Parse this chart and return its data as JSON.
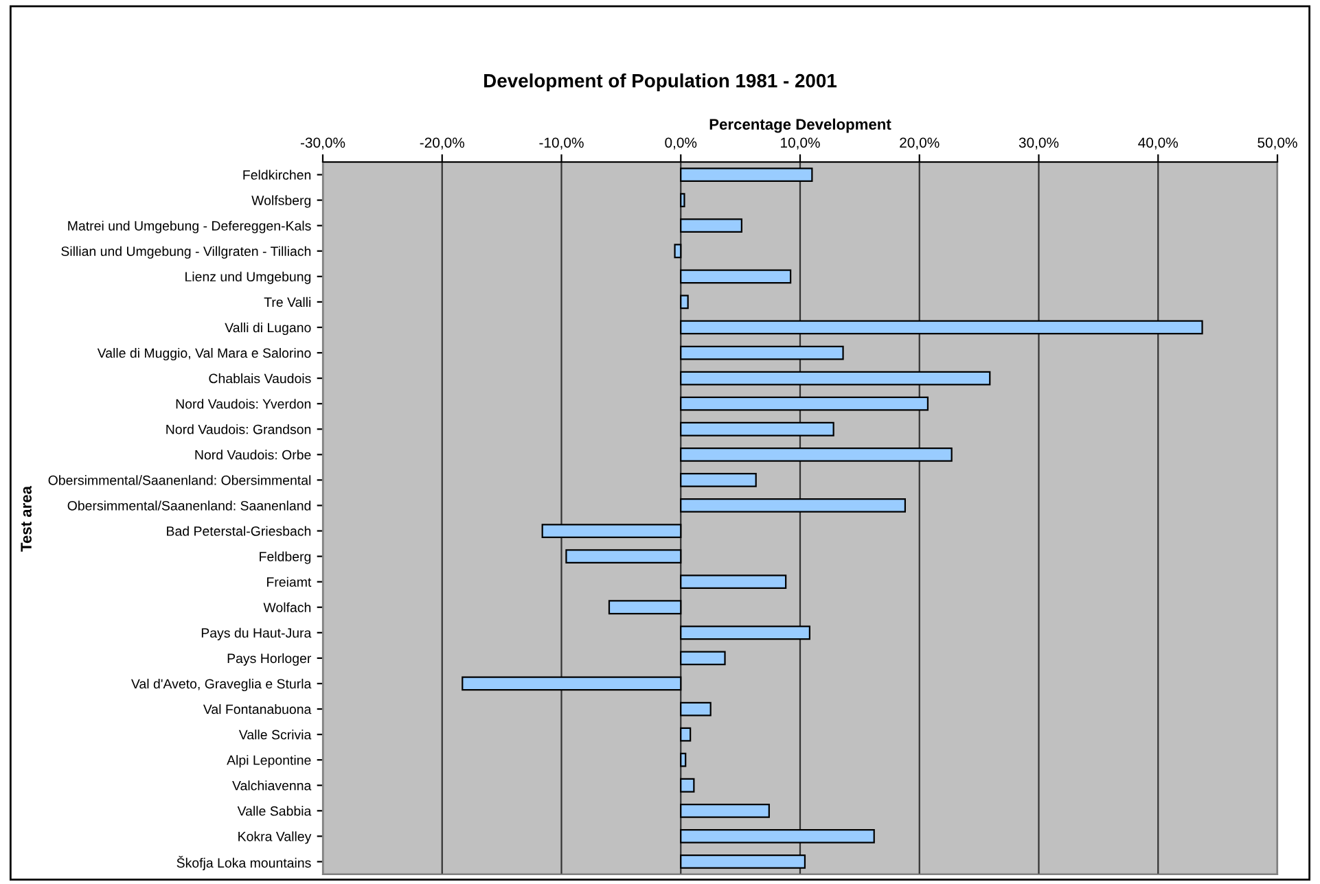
{
  "chart_data": {
    "type": "bar",
    "orientation": "horizontal",
    "title": "Development of Population 1981 - 2001",
    "xlabel": "Percentage Development",
    "ylabel": "Test area",
    "categories": [
      "Feldkirchen",
      "Wolfsberg",
      "Matrei und Umgebung - Defereggen-Kals",
      "Sillian und Umgebung - Villgraten - Tilliach",
      "Lienz und Umgebung",
      "Tre Valli",
      "Valli di Lugano",
      "Valle di Muggio, Val Mara e Salorino",
      "Chablais Vaudois",
      "Nord Vaudois: Yverdon",
      "Nord Vaudois: Grandson",
      "Nord Vaudois: Orbe",
      "Obersimmental/Saanenland: Obersimmental",
      "Obersimmental/Saanenland: Saanenland",
      "Bad Peterstal-Griesbach",
      "Feldberg",
      "Freiamt",
      "Wolfach",
      "Pays du Haut-Jura",
      "Pays Horloger",
      "Val d'Aveto, Graveglia e Sturla",
      "Val Fontanabuona",
      "Valle Scrivia",
      "Alpi Lepontine",
      "Valchiavenna",
      "Valle Sabbia",
      "Kokra Valley",
      "Škofja Loka mountains"
    ],
    "values": [
      11.0,
      0.3,
      5.1,
      -0.5,
      9.2,
      0.6,
      43.7,
      13.6,
      25.9,
      20.7,
      12.8,
      22.7,
      6.3,
      18.8,
      -11.6,
      -9.6,
      8.8,
      -6.0,
      10.8,
      3.7,
      -18.3,
      2.5,
      0.8,
      0.4,
      1.1,
      7.4,
      16.2,
      10.4
    ],
    "color": "#99ccff",
    "xlim": [
      -30,
      50
    ],
    "xticks": [
      {
        "value": -30,
        "label": "-30,0%"
      },
      {
        "value": -20,
        "label": "-20,0%"
      },
      {
        "value": -10,
        "label": "-10,0%"
      },
      {
        "value": 0,
        "label": "0,0%"
      },
      {
        "value": 10,
        "label": "10,0%"
      },
      {
        "value": 20,
        "label": "20,0%"
      },
      {
        "value": 30,
        "label": "30,0%"
      },
      {
        "value": 40,
        "label": "40,0%"
      },
      {
        "value": 50,
        "label": "50,0%"
      }
    ],
    "grid": "x",
    "legend": false
  }
}
